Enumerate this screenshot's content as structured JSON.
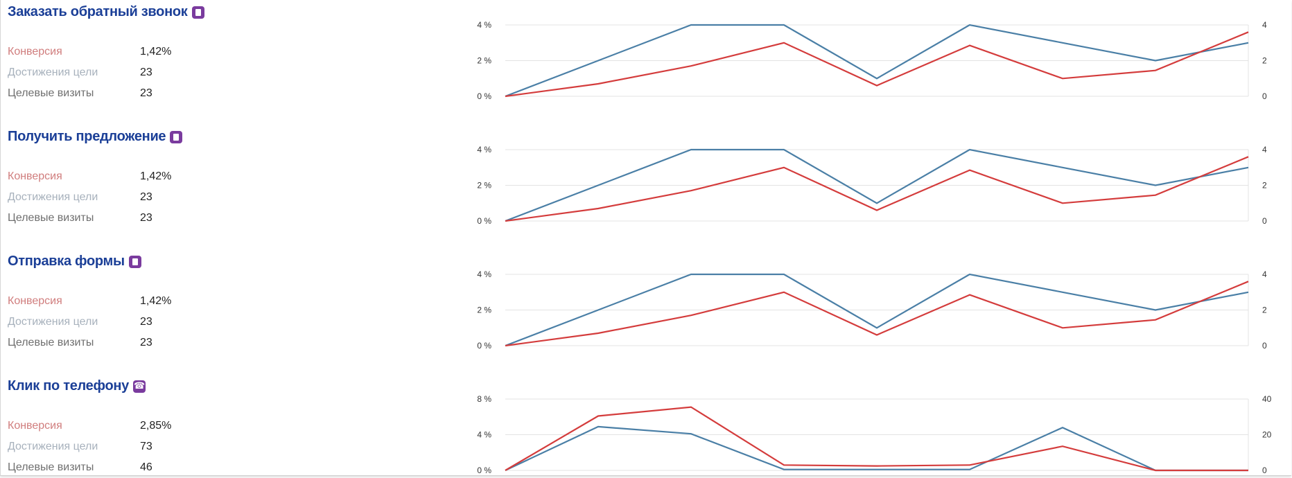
{
  "goals": [
    {
      "title": "Заказать обратный звонок",
      "icon": "page-icon",
      "metrics": [
        {
          "label": "Конверсия",
          "value": "1,42%"
        },
        {
          "label": "Достижения цели",
          "value": "23"
        },
        {
          "label": "Целевые визиты",
          "value": "23"
        }
      ]
    },
    {
      "title": "Получить предложение",
      "icon": "page-icon",
      "metrics": [
        {
          "label": "Конверсия",
          "value": "1,42%"
        },
        {
          "label": "Достижения цели",
          "value": "23"
        },
        {
          "label": "Целевые визиты",
          "value": "23"
        }
      ]
    },
    {
      "title": "Отправка формы",
      "icon": "page-icon",
      "metrics": [
        {
          "label": "Конверсия",
          "value": "1,42%"
        },
        {
          "label": "Достижения цели",
          "value": "23"
        },
        {
          "label": "Целевые визиты",
          "value": "23"
        }
      ]
    },
    {
      "title": "Клик по телефону",
      "icon": "phone-icon",
      "metrics": [
        {
          "label": "Конверсия",
          "value": "2,85%"
        },
        {
          "label": "Достижения цели",
          "value": "73"
        },
        {
          "label": "Целевые визиты",
          "value": "46"
        }
      ]
    }
  ],
  "colors": {
    "conversion": "#d43c3c",
    "visits": "#4a7fa6",
    "title": "#1b3f97",
    "icon": "#7a3b9e"
  },
  "chart_data": [
    {
      "type": "line",
      "x": [
        1,
        2,
        3,
        4,
        5,
        6,
        7,
        8,
        9
      ],
      "left_ticks": [
        "0 %",
        "2 %",
        "4 %"
      ],
      "right_ticks": [
        "0",
        "2",
        "4"
      ],
      "ylim_left": [
        0,
        4
      ],
      "ylim_right": [
        0,
        4
      ],
      "grid": true,
      "series": [
        {
          "axis": "left",
          "unit": "%",
          "color": "#d43c3c",
          "values": [
            0,
            0.7,
            1.7,
            3.0,
            0.6,
            2.85,
            1.0,
            1.45,
            3.6
          ]
        },
        {
          "axis": "right",
          "color": "#4a7fa6",
          "values": [
            0,
            2,
            4,
            4,
            1,
            4,
            3,
            2,
            3
          ]
        }
      ]
    },
    {
      "type": "line",
      "x": [
        1,
        2,
        3,
        4,
        5,
        6,
        7,
        8,
        9
      ],
      "left_ticks": [
        "0 %",
        "2 %",
        "4 %"
      ],
      "right_ticks": [
        "0",
        "2",
        "4"
      ],
      "ylim_left": [
        0,
        4
      ],
      "ylim_right": [
        0,
        4
      ],
      "grid": true,
      "series": [
        {
          "axis": "left",
          "unit": "%",
          "color": "#d43c3c",
          "values": [
            0,
            0.7,
            1.7,
            3.0,
            0.6,
            2.85,
            1.0,
            1.45,
            3.6
          ]
        },
        {
          "axis": "right",
          "color": "#4a7fa6",
          "values": [
            0,
            2,
            4,
            4,
            1,
            4,
            3,
            2,
            3
          ]
        }
      ]
    },
    {
      "type": "line",
      "x": [
        1,
        2,
        3,
        4,
        5,
        6,
        7,
        8,
        9
      ],
      "left_ticks": [
        "0 %",
        "2 %",
        "4 %"
      ],
      "right_ticks": [
        "0",
        "2",
        "4"
      ],
      "ylim_left": [
        0,
        4
      ],
      "ylim_right": [
        0,
        4
      ],
      "grid": true,
      "series": [
        {
          "axis": "left",
          "unit": "%",
          "color": "#d43c3c",
          "values": [
            0,
            0.7,
            1.7,
            3.0,
            0.6,
            2.85,
            1.0,
            1.45,
            3.6
          ]
        },
        {
          "axis": "right",
          "color": "#4a7fa6",
          "values": [
            0,
            2,
            4,
            4,
            1,
            4,
            3,
            2,
            3
          ]
        }
      ]
    },
    {
      "type": "line",
      "x": [
        1,
        2,
        3,
        4,
        5,
        6,
        7,
        8,
        9
      ],
      "left_ticks": [
        "0 %",
        "4 %",
        "8 %"
      ],
      "right_ticks": [
        "0",
        "20",
        "40"
      ],
      "ylim_left": [
        0,
        8
      ],
      "ylim_right": [
        0,
        40
      ],
      "grid": true,
      "series": [
        {
          "axis": "left",
          "unit": "%",
          "color": "#d43c3c",
          "values": [
            0,
            6.1,
            7.1,
            0.6,
            0.5,
            0.6,
            2.7,
            0,
            0
          ]
        },
        {
          "axis": "right",
          "color": "#4a7fa6",
          "values": [
            0,
            24.5,
            20.5,
            0.5,
            0.5,
            0.5,
            24,
            0,
            0
          ]
        }
      ]
    }
  ]
}
